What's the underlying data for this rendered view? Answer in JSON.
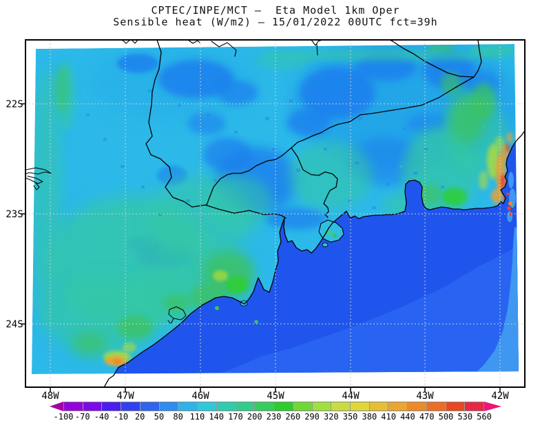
{
  "title": {
    "line1": "CPTEC/INPE/MCT –  Eta Model 1km Oper",
    "line2": "Sensible heat (W/m2) – 15/01/2022 00UTC fct=39h"
  },
  "axes": {
    "x_ticks": [
      "48W",
      "47W",
      "46W",
      "45W",
      "44W",
      "43W",
      "42W"
    ],
    "y_ticks": [
      "22S",
      "23S",
      "24S"
    ]
  },
  "colorbar": {
    "tick_labels": [
      "-100",
      "-70",
      "-40",
      "-10",
      "20",
      "50",
      "80",
      "110",
      "140",
      "170",
      "200",
      "230",
      "260",
      "290",
      "320",
      "350",
      "380",
      "410",
      "440",
      "470",
      "500",
      "530",
      "560"
    ],
    "segment_colors": [
      "#9304DB",
      "#7A0BE8",
      "#4A1EF0",
      "#3140F0",
      "#2E64F0",
      "#2F8CF0",
      "#2FB2E8",
      "#2FC8D8",
      "#30CCAE",
      "#33CC8A",
      "#37CC5E",
      "#2CCC2C",
      "#6FD836",
      "#9EE03E",
      "#C8DC42",
      "#DED838",
      "#E6BE36",
      "#EAA630",
      "#EC8A2A",
      "#EC6E24",
      "#E84820",
      "#E62844"
    ],
    "arrow_left_color": "#A403A4",
    "arrow_right_color": "#EE1478"
  },
  "map_colors": {
    "land_base": "#2CB9E9",
    "ocean": "#1F55EC",
    "ocean_offshore": "#2966F2",
    "ocean_shelf_strip": "#3E97F0",
    "coastline": "#000000",
    "gridline": "#CFCFCF"
  }
}
